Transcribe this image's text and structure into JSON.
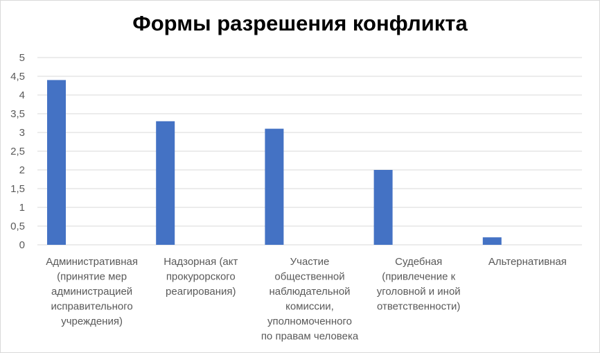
{
  "chart_data": {
    "type": "bar",
    "title": "Формы разрешения конфликта",
    "categories": [
      [
        "Административная",
        "(принятие мер",
        "администрацией",
        "исправительного",
        "учреждения)"
      ],
      [
        "Надзорная (акт",
        "прокурорского",
        "реагирования)"
      ],
      [
        "Участие",
        "общественной",
        "наблюдательной",
        "комиссии,",
        "уполномоченного",
        "по правам человека"
      ],
      [
        "Судебная",
        "(привлечение к",
        "уголовной и иной",
        "ответственности)"
      ],
      [
        "Альтернативная"
      ]
    ],
    "values": [
      4.4,
      3.3,
      3.1,
      2.0,
      0.2
    ],
    "ylim": [
      0,
      5
    ],
    "yticks": [
      "0",
      "0,5",
      "1",
      "1,5",
      "2",
      "2,5",
      "3",
      "3,5",
      "4",
      "4,5",
      "5"
    ],
    "grid": true,
    "legend": "none",
    "colors": {
      "bar": "#4472C4",
      "grid": "#d9d9d9",
      "text": "#595959"
    }
  }
}
